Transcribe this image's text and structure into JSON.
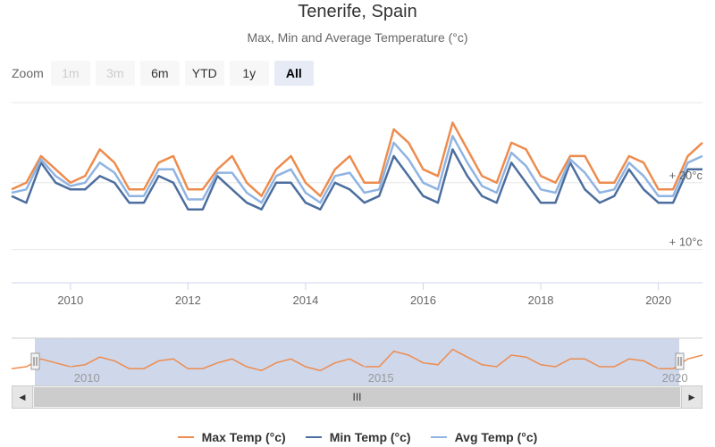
{
  "title": "Tenerife, Spain",
  "subtitle": "Max, Min and Average Temperature (°c)",
  "zoom": {
    "label": "Zoom",
    "buttons": [
      {
        "label": "1m",
        "state": "disabled"
      },
      {
        "label": "3m",
        "state": "disabled"
      },
      {
        "label": "6m",
        "state": "normal"
      },
      {
        "label": "YTD",
        "state": "normal"
      },
      {
        "label": "1y",
        "state": "normal"
      },
      {
        "label": "All",
        "state": "selected"
      }
    ]
  },
  "scrollbar": {
    "left_arrow": "◀",
    "right_arrow": "▶",
    "thumb_grip": "III"
  },
  "colors": {
    "max": "#ed8c4e",
    "min": "#4c6e9e",
    "avg": "#8fb4e3",
    "navigator_fill": "#c7d0e8"
  },
  "chart_data": {
    "type": "line",
    "title": "Tenerife, Spain",
    "subtitle": "Max, Min and Average Temperature (°c)",
    "y_ticks": [
      "+ 10°c",
      "+ 20°c"
    ],
    "x_ticks": [
      "2010",
      "2012",
      "2014",
      "2016",
      "2018",
      "2020"
    ],
    "navigator_ticks": [
      "2010",
      "2015",
      "2020"
    ],
    "xlim": [
      2009.0,
      2020.75
    ],
    "ylim": [
      5,
      32
    ],
    "grid": true,
    "legend_position": "bottom",
    "x": [
      2009.0,
      2009.25,
      2009.5,
      2009.75,
      2010.0,
      2010.25,
      2010.5,
      2010.75,
      2011.0,
      2011.25,
      2011.5,
      2011.75,
      2012.0,
      2012.25,
      2012.5,
      2012.75,
      2013.0,
      2013.25,
      2013.5,
      2013.75,
      2014.0,
      2014.25,
      2014.5,
      2014.75,
      2015.0,
      2015.25,
      2015.5,
      2015.75,
      2016.0,
      2016.25,
      2016.5,
      2016.75,
      2017.0,
      2017.25,
      2017.5,
      2017.75,
      2018.0,
      2018.25,
      2018.5,
      2018.75,
      2019.0,
      2019.25,
      2019.5,
      2019.75,
      2020.0,
      2020.25,
      2020.5,
      2020.75
    ],
    "series": [
      {
        "name": "Max Temp (°c)",
        "color": "#ed8c4e",
        "values": [
          19,
          20,
          24,
          22,
          20,
          21,
          25,
          23,
          19,
          19,
          23,
          24,
          19,
          19,
          22,
          24,
          20,
          18,
          22,
          24,
          20,
          18,
          22,
          24,
          20,
          20,
          28,
          26,
          22,
          21,
          29,
          25,
          21,
          20,
          26,
          25,
          21,
          20,
          24,
          24,
          20,
          20,
          24,
          23,
          19,
          19,
          24,
          26
        ]
      },
      {
        "name": "Min Temp (°c)",
        "color": "#4c6e9e",
        "values": [
          18,
          17,
          23,
          20,
          19,
          19,
          21,
          20,
          17,
          17,
          21,
          20,
          16,
          16,
          21,
          19,
          17,
          16,
          20,
          20,
          17,
          16,
          20,
          19,
          17,
          18,
          24,
          21,
          18,
          17,
          25,
          21,
          18,
          17,
          23,
          20,
          17,
          17,
          23,
          19,
          17,
          18,
          22,
          19,
          17,
          17,
          22,
          22
        ]
      },
      {
        "name": "Avg Temp (°c)",
        "color": "#8fb4e3",
        "values": [
          18.5,
          19,
          23.5,
          21,
          19.5,
          20,
          23,
          21.5,
          18,
          18,
          22,
          22,
          17.5,
          17.5,
          21.5,
          21.5,
          18.5,
          17,
          21,
          22,
          18.5,
          17,
          21,
          21.5,
          18.5,
          19,
          26,
          23.5,
          20,
          19,
          27,
          23,
          19.5,
          18.5,
          24.5,
          22.5,
          19,
          18.5,
          23.5,
          21.5,
          18.5,
          19,
          23,
          21,
          18,
          18,
          23,
          24
        ]
      }
    ]
  },
  "legend": [
    {
      "label": "Max Temp (°c)",
      "color": "#ed8c4e"
    },
    {
      "label": "Min Temp (°c)",
      "color": "#4c6e9e"
    },
    {
      "label": "Avg Temp (°c)",
      "color": "#8fb4e3"
    }
  ]
}
